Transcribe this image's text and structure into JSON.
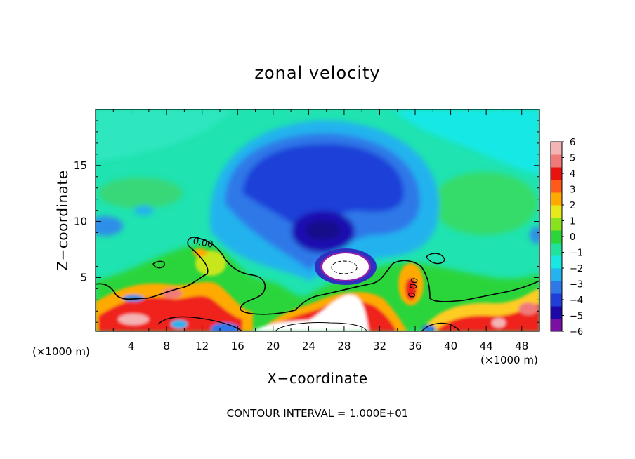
{
  "chart_data": {
    "type": "heatmap",
    "title": "zonal velocity",
    "xlabel": "X−coordinate",
    "ylabel": "Z−coordinate",
    "x_unit_left": "(×1000 m)",
    "x_unit_right": "(×1000 m)",
    "xlim": [
      0,
      50
    ],
    "ylim": [
      0.2,
      20
    ],
    "x_ticks": [
      4,
      8,
      12,
      16,
      20,
      24,
      28,
      32,
      36,
      40,
      44,
      48
    ],
    "y_ticks": [
      5,
      10,
      15
    ],
    "colorbar": {
      "ticks": [
        6,
        5,
        4,
        3,
        2,
        1,
        0,
        -1,
        -2,
        -3,
        -4,
        -5,
        -6
      ],
      "tick_labels": [
        "6",
        "5",
        "4",
        "3",
        "2",
        "1",
        "0",
        "−1",
        "−2",
        "−3",
        "−4",
        "−5",
        "−6"
      ],
      "range": [
        -6,
        6
      ],
      "colors": [
        "#7a0fa3",
        "#1c08a8",
        "#1f3fd8",
        "#2f78e8",
        "#23b3ee",
        "#19e8e0",
        "#1fe39a",
        "#2bd53a",
        "#88e21c",
        "#e6ea1a",
        "#ffaa00",
        "#ff5a1a",
        "#e8120f",
        "#f07a7a",
        "#f5b4b4"
      ]
    },
    "contour_labels": [
      "0.00",
      "0.00"
    ],
    "footer": "CONTOUR INTERVAL = 1.000E+01",
    "field_features": [
      {
        "name": "upper negative core",
        "x": 25,
        "z": 12,
        "value": -4.5
      },
      {
        "name": "lower negative core",
        "x": 26,
        "z": 8.5,
        "value": -5.5
      },
      {
        "name": "strong negative center",
        "x": 28,
        "z": 6,
        "value": -7
      },
      {
        "name": "surface positive jet",
        "x": 27,
        "z": 1.2,
        "value": 6.5
      },
      {
        "name": "left positive band",
        "x": 8,
        "z": 2.5,
        "value": 4
      },
      {
        "name": "right positive band",
        "x": 44,
        "z": 2.5,
        "value": 3
      },
      {
        "name": "right positive patch",
        "x": 34,
        "z": 4,
        "value": 3
      },
      {
        "name": "upper-right background",
        "x": 48,
        "z": 18,
        "value": -2
      },
      {
        "name": "left mid-level negative",
        "x": 4,
        "z": 9.5,
        "value": -3
      }
    ]
  }
}
